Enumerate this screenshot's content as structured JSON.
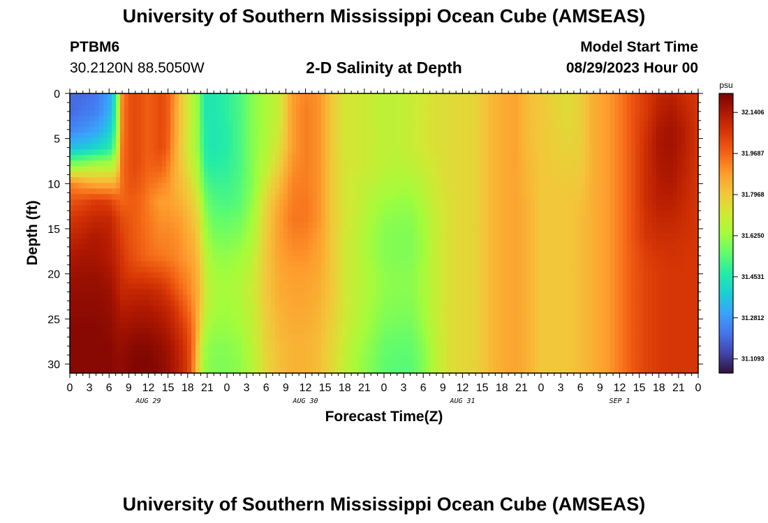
{
  "header": {
    "title": "University of Southern Mississippi Ocean Cube (AMSEAS)",
    "station": "PTBM6",
    "coords": "30.2120N  88.5050W",
    "subtitle": "2-D Salinity at Depth",
    "model_start_label": "Model Start Time",
    "model_start_value": "08/29/2023 Hour 00"
  },
  "footer": {
    "title": "University of Southern Mississippi Ocean Cube (AMSEAS)"
  },
  "chart_data": {
    "type": "heatmap",
    "title": "2-D Salinity at Depth",
    "xlabel": "Forecast Time(Z)",
    "ylabel": "Depth (ft)",
    "x_tick_labels": [
      "0",
      "3",
      "6",
      "9",
      "12",
      "15",
      "18",
      "21",
      "0",
      "3",
      "6",
      "9",
      "12",
      "15",
      "18",
      "21",
      "0",
      "3",
      "6",
      "9",
      "12",
      "15",
      "18",
      "21",
      "0",
      "3",
      "6",
      "9",
      "12",
      "15",
      "18",
      "21",
      "0"
    ],
    "x_hours_range": [
      0,
      96
    ],
    "day_labels": [
      {
        "label": "AUG 29",
        "hour": 12
      },
      {
        "label": "AUG 30",
        "hour": 36
      },
      {
        "label": "AUG 31",
        "hour": 60
      },
      {
        "label": "SEP 1",
        "hour": 84
      }
    ],
    "y_ticks": [
      0,
      5,
      10,
      15,
      20,
      25,
      30
    ],
    "ylim": [
      0,
      31
    ],
    "y_inverted": true,
    "colorbar": {
      "units": "psu",
      "vmin": 31.05,
      "vmax": 32.22,
      "ticks": [
        "32.1406",
        "31.9687",
        "31.7968",
        "31.6250",
        "31.4531",
        "31.2812",
        "31.1093"
      ],
      "colormap": [
        "#30123b",
        "#4145ab",
        "#4675ed",
        "#39a2fc",
        "#1bcfd4",
        "#24eca6",
        "#61fc6c",
        "#a4fc3b",
        "#d1e834",
        "#f3c63a",
        "#fe9b2d",
        "#f36315",
        "#d93806",
        "#b11901",
        "#7a0402"
      ]
    },
    "grid": false,
    "series_hours": [
      0,
      2,
      4,
      6,
      7,
      8,
      9,
      10,
      11,
      12,
      13,
      14,
      15,
      16,
      17,
      18,
      18.5,
      19,
      19.5,
      20,
      20.5,
      21,
      22,
      24,
      26,
      28,
      30,
      32,
      34,
      36,
      38,
      40,
      42,
      44,
      46,
      48,
      50,
      52,
      54,
      56,
      58,
      60,
      62,
      64,
      66,
      68,
      70,
      72,
      74,
      76,
      78,
      80,
      82,
      84,
      86,
      88,
      90,
      92,
      94,
      96
    ],
    "series_depths_ft": [
      0,
      2,
      4,
      6,
      8,
      10,
      12,
      14,
      16,
      18,
      20,
      22,
      24,
      26,
      28,
      30,
      31
    ],
    "values_psu_by_depth": [
      [
        31.2,
        31.2,
        31.22,
        31.3,
        31.45,
        31.9,
        32.0,
        32.02,
        32.0,
        31.98,
        32.0,
        32.02,
        31.98,
        31.9,
        31.8,
        31.72,
        31.68,
        31.65,
        31.62,
        31.55,
        31.45,
        31.45,
        31.45,
        31.48,
        31.52,
        31.6,
        31.65,
        31.7,
        31.88,
        31.92,
        31.9,
        31.8,
        31.72,
        31.72,
        31.7,
        31.68,
        31.68,
        31.7,
        31.72,
        31.74,
        31.75,
        31.76,
        31.77,
        31.82,
        31.85,
        31.87,
        31.82,
        31.8,
        31.77,
        31.75,
        31.78,
        31.85,
        31.88,
        31.93,
        32.0,
        32.05,
        32.1,
        32.12,
        32.08,
        32.06
      ],
      [
        31.2,
        31.22,
        31.24,
        31.32,
        31.48,
        31.92,
        32.0,
        32.02,
        32.0,
        31.98,
        32.0,
        32.02,
        31.98,
        31.88,
        31.8,
        31.72,
        31.68,
        31.65,
        31.62,
        31.55,
        31.45,
        31.45,
        31.45,
        31.48,
        31.52,
        31.6,
        31.65,
        31.7,
        31.88,
        31.93,
        31.9,
        31.8,
        31.72,
        31.72,
        31.7,
        31.68,
        31.68,
        31.7,
        31.72,
        31.74,
        31.75,
        31.76,
        31.77,
        31.82,
        31.85,
        31.87,
        31.82,
        31.8,
        31.77,
        31.75,
        31.78,
        31.85,
        31.88,
        31.93,
        32.0,
        32.05,
        32.12,
        32.14,
        32.1,
        32.06
      ],
      [
        31.25,
        31.27,
        31.3,
        31.38,
        31.52,
        31.92,
        32.0,
        32.02,
        32.0,
        31.98,
        32.0,
        32.02,
        31.98,
        31.88,
        31.8,
        31.72,
        31.68,
        31.65,
        31.62,
        31.55,
        31.47,
        31.46,
        31.45,
        31.47,
        31.52,
        31.6,
        31.65,
        31.72,
        31.88,
        31.93,
        31.9,
        31.8,
        31.72,
        31.72,
        31.7,
        31.68,
        31.68,
        31.7,
        31.72,
        31.74,
        31.75,
        31.76,
        31.77,
        31.82,
        31.85,
        31.87,
        31.82,
        31.8,
        31.78,
        31.76,
        31.78,
        31.85,
        31.88,
        31.93,
        32.0,
        32.07,
        32.14,
        32.16,
        32.12,
        32.06
      ],
      [
        31.35,
        31.37,
        31.4,
        31.45,
        31.58,
        31.94,
        32.0,
        32.02,
        32.0,
        31.98,
        32.0,
        32.02,
        31.97,
        31.87,
        31.79,
        31.72,
        31.68,
        31.66,
        31.62,
        31.56,
        31.47,
        31.46,
        31.45,
        31.47,
        31.52,
        31.6,
        31.66,
        31.74,
        31.88,
        31.93,
        31.9,
        31.8,
        31.72,
        31.72,
        31.7,
        31.68,
        31.68,
        31.7,
        31.72,
        31.74,
        31.75,
        31.76,
        31.77,
        31.82,
        31.85,
        31.87,
        31.82,
        31.8,
        31.78,
        31.77,
        31.78,
        31.85,
        31.88,
        31.93,
        32.0,
        32.08,
        32.15,
        32.16,
        32.12,
        32.06
      ],
      [
        31.6,
        31.62,
        31.65,
        31.65,
        31.7,
        31.95,
        32.0,
        32.02,
        32.0,
        31.97,
        31.98,
        31.98,
        31.93,
        31.86,
        31.8,
        31.74,
        31.7,
        31.68,
        31.65,
        31.58,
        31.5,
        31.48,
        31.47,
        31.48,
        31.52,
        31.6,
        31.68,
        31.78,
        31.9,
        31.93,
        31.9,
        31.8,
        31.73,
        31.72,
        31.7,
        31.68,
        31.67,
        31.68,
        31.7,
        31.73,
        31.75,
        31.76,
        31.77,
        31.82,
        31.85,
        31.87,
        31.83,
        31.8,
        31.79,
        31.78,
        31.79,
        31.85,
        31.88,
        31.93,
        32.0,
        32.08,
        32.14,
        32.15,
        32.11,
        32.06
      ],
      [
        31.92,
        31.88,
        31.85,
        31.85,
        31.85,
        31.95,
        32.0,
        32.0,
        31.98,
        31.95,
        31.94,
        31.92,
        31.9,
        31.85,
        31.82,
        31.78,
        31.75,
        31.72,
        31.68,
        31.62,
        31.55,
        31.52,
        31.5,
        31.5,
        31.53,
        31.6,
        31.72,
        31.82,
        31.92,
        31.93,
        31.9,
        31.8,
        31.73,
        31.7,
        31.68,
        31.66,
        31.65,
        31.65,
        31.68,
        31.72,
        31.75,
        31.76,
        31.77,
        31.82,
        31.85,
        31.87,
        31.83,
        31.8,
        31.8,
        31.79,
        31.8,
        31.85,
        31.88,
        31.93,
        32.0,
        32.08,
        32.13,
        32.14,
        32.1,
        32.06
      ],
      [
        32.0,
        32.02,
        32.05,
        32.04,
        32.0,
        31.97,
        31.98,
        31.98,
        31.96,
        31.93,
        31.9,
        31.88,
        31.88,
        31.86,
        31.84,
        31.81,
        31.79,
        31.77,
        31.73,
        31.67,
        31.6,
        31.56,
        31.53,
        31.52,
        31.54,
        31.62,
        31.76,
        31.86,
        31.93,
        31.94,
        31.9,
        31.8,
        31.73,
        31.7,
        31.66,
        31.63,
        31.62,
        31.62,
        31.66,
        31.71,
        31.74,
        31.76,
        31.77,
        31.82,
        31.85,
        31.87,
        31.84,
        31.8,
        31.8,
        31.8,
        31.81,
        31.85,
        31.88,
        31.93,
        32.0,
        32.08,
        32.12,
        32.12,
        32.09,
        32.06
      ],
      [
        32.06,
        32.08,
        32.1,
        32.1,
        32.06,
        32.02,
        32.0,
        31.98,
        31.96,
        31.94,
        31.92,
        31.9,
        31.9,
        31.89,
        31.87,
        31.84,
        31.82,
        31.8,
        31.77,
        31.71,
        31.64,
        31.6,
        31.56,
        31.55,
        31.57,
        31.64,
        31.78,
        31.88,
        31.94,
        31.94,
        31.9,
        31.8,
        31.73,
        31.69,
        31.64,
        31.61,
        31.6,
        31.6,
        31.64,
        31.7,
        31.74,
        31.76,
        31.77,
        31.82,
        31.85,
        31.87,
        31.84,
        31.8,
        31.8,
        31.8,
        31.82,
        31.85,
        31.88,
        31.93,
        32.0,
        32.07,
        32.1,
        32.1,
        32.08,
        32.06
      ],
      [
        32.1,
        32.12,
        32.14,
        32.12,
        32.08,
        32.04,
        32.01,
        31.99,
        31.97,
        31.95,
        31.93,
        31.92,
        31.92,
        31.91,
        31.89,
        31.86,
        31.84,
        31.83,
        31.8,
        31.74,
        31.67,
        31.63,
        31.59,
        31.58,
        31.6,
        31.66,
        31.79,
        31.88,
        31.92,
        31.92,
        31.88,
        31.8,
        31.72,
        31.68,
        31.63,
        31.6,
        31.59,
        31.59,
        31.63,
        31.7,
        31.74,
        31.76,
        31.77,
        31.82,
        31.85,
        31.87,
        31.84,
        31.8,
        31.8,
        31.8,
        31.82,
        31.85,
        31.88,
        31.93,
        32.0,
        32.06,
        32.08,
        32.08,
        32.07,
        32.06
      ],
      [
        32.14,
        32.15,
        32.15,
        32.13,
        32.1,
        32.06,
        32.02,
        32.0,
        31.98,
        31.96,
        31.95,
        31.94,
        31.93,
        31.92,
        31.9,
        31.88,
        31.86,
        31.85,
        31.82,
        31.77,
        31.7,
        31.66,
        31.62,
        31.61,
        31.63,
        31.68,
        31.8,
        31.87,
        31.9,
        31.9,
        31.87,
        31.8,
        31.72,
        31.68,
        31.63,
        31.6,
        31.59,
        31.59,
        31.63,
        31.7,
        31.74,
        31.76,
        31.77,
        31.82,
        31.85,
        31.87,
        31.84,
        31.8,
        31.8,
        31.8,
        31.82,
        31.85,
        31.88,
        31.93,
        31.99,
        32.04,
        32.06,
        32.07,
        32.06,
        32.06
      ],
      [
        32.16,
        32.17,
        32.17,
        32.15,
        32.12,
        32.08,
        32.05,
        32.04,
        32.04,
        32.03,
        32.02,
        32.01,
        31.99,
        31.96,
        31.93,
        31.91,
        31.89,
        31.87,
        31.84,
        31.79,
        31.72,
        31.68,
        31.64,
        31.63,
        31.65,
        31.7,
        31.8,
        31.86,
        31.88,
        31.88,
        31.86,
        31.8,
        31.72,
        31.68,
        31.64,
        31.61,
        31.6,
        31.6,
        31.64,
        31.7,
        31.74,
        31.76,
        31.77,
        31.82,
        31.85,
        31.87,
        31.84,
        31.8,
        31.8,
        31.8,
        31.82,
        31.85,
        31.88,
        31.93,
        31.99,
        32.03,
        32.05,
        32.06,
        32.06,
        32.06
      ],
      [
        32.18,
        32.18,
        32.18,
        32.17,
        32.14,
        32.1,
        32.1,
        32.1,
        32.1,
        32.1,
        32.09,
        32.08,
        32.05,
        32.01,
        31.97,
        31.93,
        31.91,
        31.88,
        31.85,
        31.8,
        31.73,
        31.69,
        31.65,
        31.64,
        31.66,
        31.71,
        31.8,
        31.85,
        31.87,
        31.87,
        31.85,
        31.8,
        31.72,
        31.68,
        31.64,
        31.61,
        31.6,
        31.6,
        31.64,
        31.7,
        31.74,
        31.76,
        31.77,
        31.82,
        31.85,
        31.87,
        31.84,
        31.8,
        31.8,
        31.8,
        31.82,
        31.85,
        31.88,
        31.93,
        31.99,
        32.03,
        32.05,
        32.06,
        32.06,
        32.06
      ],
      [
        32.19,
        32.19,
        32.19,
        32.18,
        32.16,
        32.13,
        32.13,
        32.14,
        32.14,
        32.14,
        32.13,
        32.12,
        32.1,
        32.07,
        32.02,
        31.97,
        31.94,
        31.9,
        31.85,
        31.79,
        31.72,
        31.68,
        31.64,
        31.63,
        31.65,
        31.7,
        31.79,
        31.84,
        31.86,
        31.86,
        31.84,
        31.79,
        31.72,
        31.67,
        31.63,
        31.6,
        31.59,
        31.59,
        31.63,
        31.7,
        31.74,
        31.76,
        31.77,
        31.82,
        31.85,
        31.87,
        31.84,
        31.8,
        31.8,
        31.8,
        31.82,
        31.85,
        31.88,
        31.93,
        31.99,
        32.03,
        32.05,
        32.06,
        32.06,
        32.06
      ],
      [
        32.2,
        32.2,
        32.2,
        32.19,
        32.17,
        32.16,
        32.16,
        32.17,
        32.17,
        32.17,
        32.16,
        32.15,
        32.13,
        32.1,
        32.06,
        32.01,
        31.97,
        31.92,
        31.85,
        31.76,
        31.68,
        31.65,
        31.62,
        31.62,
        31.64,
        31.69,
        31.78,
        31.83,
        31.85,
        31.85,
        31.83,
        31.78,
        31.71,
        31.66,
        31.62,
        31.58,
        31.57,
        31.57,
        31.62,
        31.69,
        31.74,
        31.76,
        31.77,
        31.82,
        31.85,
        31.87,
        31.84,
        31.8,
        31.8,
        31.8,
        31.82,
        31.85,
        31.88,
        31.93,
        31.99,
        32.03,
        32.05,
        32.06,
        32.06,
        32.06
      ],
      [
        32.2,
        32.2,
        32.2,
        32.2,
        32.18,
        32.18,
        32.19,
        32.2,
        32.2,
        32.2,
        32.19,
        32.18,
        32.16,
        32.13,
        32.09,
        32.04,
        31.99,
        31.92,
        31.82,
        31.72,
        31.64,
        31.62,
        31.6,
        31.6,
        31.62,
        31.68,
        31.77,
        31.82,
        31.84,
        31.84,
        31.82,
        31.77,
        31.7,
        31.64,
        31.6,
        31.56,
        31.55,
        31.55,
        31.6,
        31.68,
        31.74,
        31.76,
        31.77,
        31.82,
        31.85,
        31.87,
        31.84,
        31.8,
        31.8,
        31.8,
        31.82,
        31.85,
        31.88,
        31.93,
        31.99,
        32.03,
        32.05,
        32.06,
        32.06,
        32.06
      ],
      [
        32.2,
        32.2,
        32.2,
        32.2,
        32.19,
        32.19,
        32.2,
        32.21,
        32.21,
        32.21,
        32.2,
        32.19,
        32.17,
        32.14,
        32.1,
        32.05,
        31.99,
        31.9,
        31.8,
        31.7,
        31.63,
        31.61,
        31.59,
        31.59,
        31.61,
        31.67,
        31.76,
        31.82,
        31.84,
        31.84,
        31.82,
        31.76,
        31.69,
        31.63,
        31.59,
        31.55,
        31.54,
        31.54,
        31.59,
        31.68,
        31.74,
        31.76,
        31.77,
        31.82,
        31.85,
        31.87,
        31.84,
        31.8,
        31.8,
        31.8,
        31.82,
        31.85,
        31.88,
        31.93,
        31.99,
        32.03,
        32.05,
        32.06,
        32.06,
        32.06
      ],
      [
        32.2,
        32.2,
        32.2,
        32.2,
        32.19,
        32.19,
        32.2,
        32.21,
        32.21,
        32.21,
        32.2,
        32.19,
        32.17,
        32.14,
        32.1,
        32.05,
        31.99,
        31.9,
        31.8,
        31.7,
        31.63,
        31.61,
        31.59,
        31.59,
        31.61,
        31.67,
        31.76,
        31.82,
        31.84,
        31.84,
        31.82,
        31.76,
        31.69,
        31.63,
        31.59,
        31.55,
        31.54,
        31.54,
        31.59,
        31.68,
        31.74,
        31.76,
        31.77,
        31.82,
        31.85,
        31.87,
        31.84,
        31.8,
        31.8,
        31.8,
        31.82,
        31.85,
        31.88,
        31.93,
        31.99,
        32.03,
        32.05,
        32.06,
        32.06,
        32.06
      ]
    ]
  }
}
